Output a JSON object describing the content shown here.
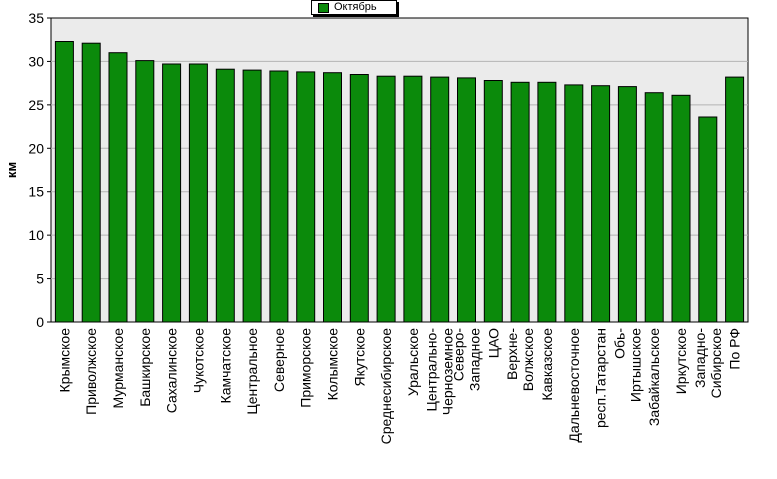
{
  "chart_data": {
    "type": "bar",
    "title": "",
    "xlabel": "",
    "ylabel": "км",
    "ylim": [
      0,
      35
    ],
    "yticks": [
      0,
      5,
      10,
      15,
      20,
      25,
      30,
      35
    ],
    "grid": true,
    "legend_position": "top-center",
    "categories": [
      "Крымское",
      "Приволжское",
      "Мурманское",
      "Башкирское",
      "Сахалинское",
      "Чукотское",
      "Камчатское",
      "Центральное",
      "Северное",
      "Приморское",
      "Колымское",
      "Якутское",
      "Среднесибирское",
      "Уральское",
      "Центрально-Черноземное",
      "Северо-Западное",
      "ЦАО",
      "Верхне-Волжское",
      "Кавказское",
      "Дальневосточное",
      "респ.Татарстан",
      "Обь-Иртышское",
      "Забайкальское",
      "Иркутское",
      "Западно-Сибирское",
      "По РФ"
    ],
    "series": [
      {
        "name": "Октябрь",
        "color": "#0b8a0b",
        "values": [
          32.3,
          32.1,
          31.0,
          30.1,
          29.7,
          29.7,
          29.1,
          29.0,
          28.9,
          28.8,
          28.7,
          28.5,
          28.3,
          28.3,
          28.2,
          28.1,
          27.8,
          27.6,
          27.6,
          27.3,
          27.2,
          27.1,
          26.4,
          26.1,
          23.6,
          28.2
        ]
      }
    ],
    "colors": {
      "plot_background": "#ebebeb",
      "bar": "#0b8a0b",
      "grid": "#b4b4b4"
    }
  }
}
